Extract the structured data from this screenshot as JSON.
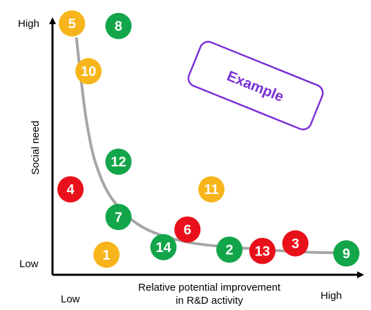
{
  "chart_data": {
    "type": "scatter",
    "xlabel_lines": [
      "Relative potential improvement",
      "in R&D activity"
    ],
    "ylabel": "Social need",
    "x_ticks": {
      "low": "Low",
      "high": "High"
    },
    "y_ticks": {
      "low": "Low",
      "high": "High"
    },
    "xlim": [
      0,
      10
    ],
    "ylim": [
      0,
      10
    ],
    "grid": false,
    "annotation": {
      "text": "Example",
      "color": "#7a2fd6"
    },
    "colors": {
      "green": "#13a54a",
      "yellow": "#f7b51b",
      "red": "#e8101a",
      "curve": "#a6a6a6"
    },
    "points": [
      {
        "label": "1",
        "x": 1.8,
        "y": 0.8,
        "color": "yellow"
      },
      {
        "label": "2",
        "x": 5.9,
        "y": 1.0,
        "color": "green"
      },
      {
        "label": "3",
        "x": 8.1,
        "y": 1.25,
        "color": "red"
      },
      {
        "label": "4",
        "x": 0.6,
        "y": 3.4,
        "color": "red"
      },
      {
        "label": "5",
        "x": 0.65,
        "y": 10.0,
        "color": "yellow"
      },
      {
        "label": "6",
        "x": 4.5,
        "y": 1.8,
        "color": "red"
      },
      {
        "label": "7",
        "x": 2.2,
        "y": 2.3,
        "color": "green"
      },
      {
        "label": "8",
        "x": 2.2,
        "y": 9.9,
        "color": "green"
      },
      {
        "label": "9",
        "x": 9.8,
        "y": 0.85,
        "color": "green"
      },
      {
        "label": "10",
        "x": 1.2,
        "y": 8.1,
        "color": "yellow"
      },
      {
        "label": "11",
        "x": 5.3,
        "y": 3.4,
        "color": "yellow"
      },
      {
        "label": "12",
        "x": 2.2,
        "y": 4.5,
        "color": "green"
      },
      {
        "label": "13",
        "x": 7.0,
        "y": 0.95,
        "color": "red"
      },
      {
        "label": "14",
        "x": 3.7,
        "y": 1.1,
        "color": "green"
      }
    ],
    "trend_curve": [
      {
        "x": 0.8,
        "y": 9.4
      },
      {
        "x": 0.95,
        "y": 7.8
      },
      {
        "x": 1.15,
        "y": 6.0
      },
      {
        "x": 1.45,
        "y": 4.4
      },
      {
        "x": 2.0,
        "y": 3.0
      },
      {
        "x": 3.0,
        "y": 1.9
      },
      {
        "x": 4.5,
        "y": 1.3
      },
      {
        "x": 6.5,
        "y": 1.05
      },
      {
        "x": 8.5,
        "y": 0.9
      },
      {
        "x": 9.6,
        "y": 0.88
      }
    ]
  }
}
